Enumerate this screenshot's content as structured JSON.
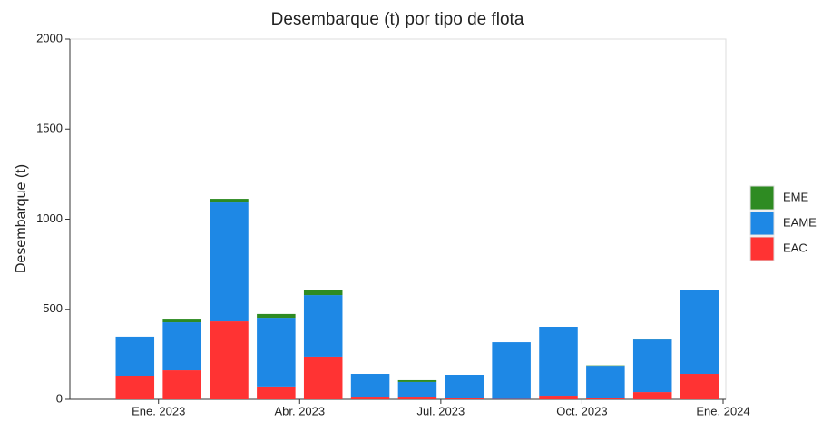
{
  "chart_data": {
    "type": "stacked-bar",
    "title": "Desembarque (t) por tipo de flota",
    "y_label": "Desembarque (t)",
    "x": [
      "2022-12",
      "2023-01",
      "2023-02",
      "2023-03",
      "2023-04",
      "2023-05",
      "2023-06",
      "2023-07",
      "2023-08",
      "2023-09",
      "2023-10",
      "2023-11",
      "2023-12"
    ],
    "series": [
      {
        "name": "EAC",
        "color": "#ff3333",
        "values": [
          131,
          161,
          433,
          71,
          237,
          15,
          15,
          5,
          2,
          20,
          10,
          40,
          141
        ]
      },
      {
        "name": "EAME",
        "color": "#1e88e5",
        "values": [
          217,
          267,
          660,
          382,
          342,
          126,
          81,
          131,
          315,
          383,
          176,
          292,
          464
        ]
      },
      {
        "name": "EME",
        "color": "#2e8b22",
        "values": [
          0,
          20,
          20,
          21,
          26,
          0,
          10,
          0,
          0,
          0,
          2,
          2,
          0
        ]
      }
    ],
    "xlim": [
      "2022-11",
      "2024-01"
    ],
    "xticks": [
      {
        "value": "2023-01",
        "label": "Ene. 2023"
      },
      {
        "value": "2023-04",
        "label": "Abr. 2023"
      },
      {
        "value": "2023-07",
        "label": "Jul. 2023"
      },
      {
        "value": "2023-10",
        "label": "Oct. 2023"
      },
      {
        "value": "2024-01",
        "label": "Ene. 2024"
      }
    ],
    "ylim": [
      0,
      2000
    ],
    "yticks": [
      0,
      500,
      1000,
      1500,
      2000
    ],
    "grid": false,
    "legend": "right"
  }
}
